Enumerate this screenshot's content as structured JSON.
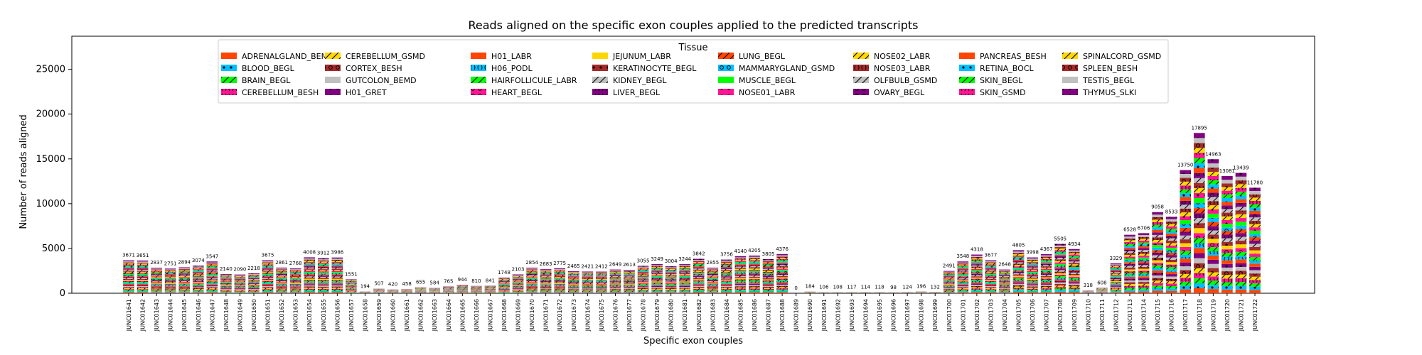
{
  "chart_data": {
    "type": "bar",
    "stacked": true,
    "title": "Reads aligned on the specific exon couples applied to the predicted transcripts",
    "xlabel": "Specific exon couples",
    "ylabel": "Number of reads aligned",
    "ylim": [
      0,
      28700
    ],
    "yticks": [
      0,
      5000,
      10000,
      15000,
      20000,
      25000
    ],
    "legend": {
      "title": "Tissue",
      "position": "top"
    },
    "categories": [
      "JUNC01641",
      "JUNC01642",
      "JUNC01643",
      "JUNC01644",
      "JUNC01645",
      "JUNC01646",
      "JUNC01647",
      "JUNC01648",
      "JUNC01649",
      "JUNC01650",
      "JUNC01651",
      "JUNC01652",
      "JUNC01653",
      "JUNC01654",
      "JUNC01655",
      "JUNC01656",
      "JUNC01657",
      "JUNC01658",
      "JUNC01659",
      "JUNC01660",
      "JUNC01661",
      "JUNC01662",
      "JUNC01663",
      "JUNC01664",
      "JUNC01665",
      "JUNC01666",
      "JUNC01667",
      "JUNC01668",
      "JUNC01669",
      "JUNC01670",
      "JUNC01671",
      "JUNC01672",
      "JUNC01673",
      "JUNC01674",
      "JUNC01675",
      "JUNC01676",
      "JUNC01677",
      "JUNC01678",
      "JUNC01679",
      "JUNC01680",
      "JUNC01681",
      "JUNC01682",
      "JUNC01683",
      "JUNC01684",
      "JUNC01685",
      "JUNC01686",
      "JUNC01687",
      "JUNC01688",
      "JUNC01689",
      "JUNC01690",
      "JUNC01691",
      "JUNC01692",
      "JUNC01693",
      "JUNC01694",
      "JUNC01695",
      "JUNC01696",
      "JUNC01697",
      "JUNC01698",
      "JUNC01699",
      "JUNC01700",
      "JUNC01701",
      "JUNC01702",
      "JUNC01703",
      "JUNC01704",
      "JUNC01705",
      "JUNC01706",
      "JUNC01707",
      "JUNC01708",
      "JUNC01709",
      "JUNC01710",
      "JUNC01711",
      "JUNC01712",
      "JUNC01713",
      "JUNC01714",
      "JUNC01715",
      "JUNC01716",
      "JUNC01717",
      "JUNC01718",
      "JUNC01719",
      "JUNC01720",
      "JUNC01721",
      "JUNC01722"
    ],
    "totals": [
      3671,
      3651,
      2837,
      2751,
      2894,
      3074,
      3547,
      2140,
      2090,
      2218,
      3675,
      2861,
      2768,
      4008,
      3912,
      3986,
      1551,
      194,
      507,
      420,
      458,
      655,
      584,
      765,
      944,
      810,
      841,
      1748,
      2103,
      2854,
      2683,
      2775,
      2465,
      2421,
      2412,
      2649,
      2613,
      3055,
      3249,
      3004,
      3244,
      3842,
      2855,
      3756,
      4140,
      4205,
      3805,
      4376,
      0,
      184,
      106,
      108,
      117,
      114,
      118,
      98,
      124,
      196,
      132,
      2491,
      3548,
      4318,
      3677,
      2648,
      4805,
      3998,
      4367,
      5505,
      4934,
      318,
      608,
      3329,
      6528,
      6706,
      9058,
      8533,
      13750,
      17895,
      14963,
      13081,
      13439,
      11780
    ],
    "series": [
      {
        "name": "ADRENALGLAND_BEMD",
        "color": "#ff4500",
        "hatch": "none"
      },
      {
        "name": "BLOOD_BEGL",
        "color": "#00bfff",
        "hatch": "dot"
      },
      {
        "name": "BRAIN_BEGL",
        "color": "#00ff00",
        "hatch": "slash"
      },
      {
        "name": "CEREBELLUM_BESH",
        "color": "#ff1493",
        "hatch": "paren"
      },
      {
        "name": "CEREBELLUM_GSMD",
        "color": "#ffd700",
        "hatch": "slash"
      },
      {
        "name": "CORTEX_BESH",
        "color": "#a52a2a",
        "hatch": "ring"
      },
      {
        "name": "GUTCOLON_BEMD",
        "color": "#c0c0c0",
        "hatch": "none"
      },
      {
        "name": "H01_GRET",
        "color": "#800080",
        "hatch": "dot"
      },
      {
        "name": "H01_LABR",
        "color": "#ff4500",
        "hatch": "none"
      },
      {
        "name": "H06_PODL",
        "color": "#00bfff",
        "hatch": "paren"
      },
      {
        "name": "HAIRFOLLICULE_LABR",
        "color": "#00ff00",
        "hatch": "slash"
      },
      {
        "name": "HEART_BEGL",
        "color": "#ff1493",
        "hatch": "ring"
      },
      {
        "name": "JEJUNUM_LABR",
        "color": "#ffd700",
        "hatch": "none"
      },
      {
        "name": "KERATINOCYTE_BEGL",
        "color": "#a52a2a",
        "hatch": "dot"
      },
      {
        "name": "KIDNEY_BEGL",
        "color": "#c0c0c0",
        "hatch": "slash"
      },
      {
        "name": "LIVER_BEGL",
        "color": "#800080",
        "hatch": "paren"
      },
      {
        "name": "LUNG_BEGL",
        "color": "#ff4500",
        "hatch": "slash"
      },
      {
        "name": "MAMMARYGLAND_GSMD",
        "color": "#00bfff",
        "hatch": "ring"
      },
      {
        "name": "MUSCLE_BEGL",
        "color": "#00ff00",
        "hatch": "none"
      },
      {
        "name": "NOSE01_LABR",
        "color": "#ff1493",
        "hatch": "dot"
      },
      {
        "name": "NOSE02_LABR",
        "color": "#ffd700",
        "hatch": "slash"
      },
      {
        "name": "NOSE03_LABR",
        "color": "#a52a2a",
        "hatch": "paren"
      },
      {
        "name": "OLFBULB_GSMD",
        "color": "#c0c0c0",
        "hatch": "slash"
      },
      {
        "name": "OVARY_BEGL",
        "color": "#800080",
        "hatch": "ring"
      },
      {
        "name": "PANCREAS_BESH",
        "color": "#ff4500",
        "hatch": "none"
      },
      {
        "name": "RETINA_BOCL",
        "color": "#00bfff",
        "hatch": "dot"
      },
      {
        "name": "SKIN_BEGL",
        "color": "#00ff00",
        "hatch": "slash"
      },
      {
        "name": "SKIN_GSMD",
        "color": "#ff1493",
        "hatch": "paren"
      },
      {
        "name": "SPINALCORD_GSMD",
        "color": "#ffd700",
        "hatch": "slash"
      },
      {
        "name": "SPLEEN_BESH",
        "color": "#a52a2a",
        "hatch": "ring"
      },
      {
        "name": "TESTIS_BEGL",
        "color": "#c0c0c0",
        "hatch": "none"
      },
      {
        "name": "THYMUS_SLKI",
        "color": "#800080",
        "hatch": "dot"
      }
    ]
  }
}
